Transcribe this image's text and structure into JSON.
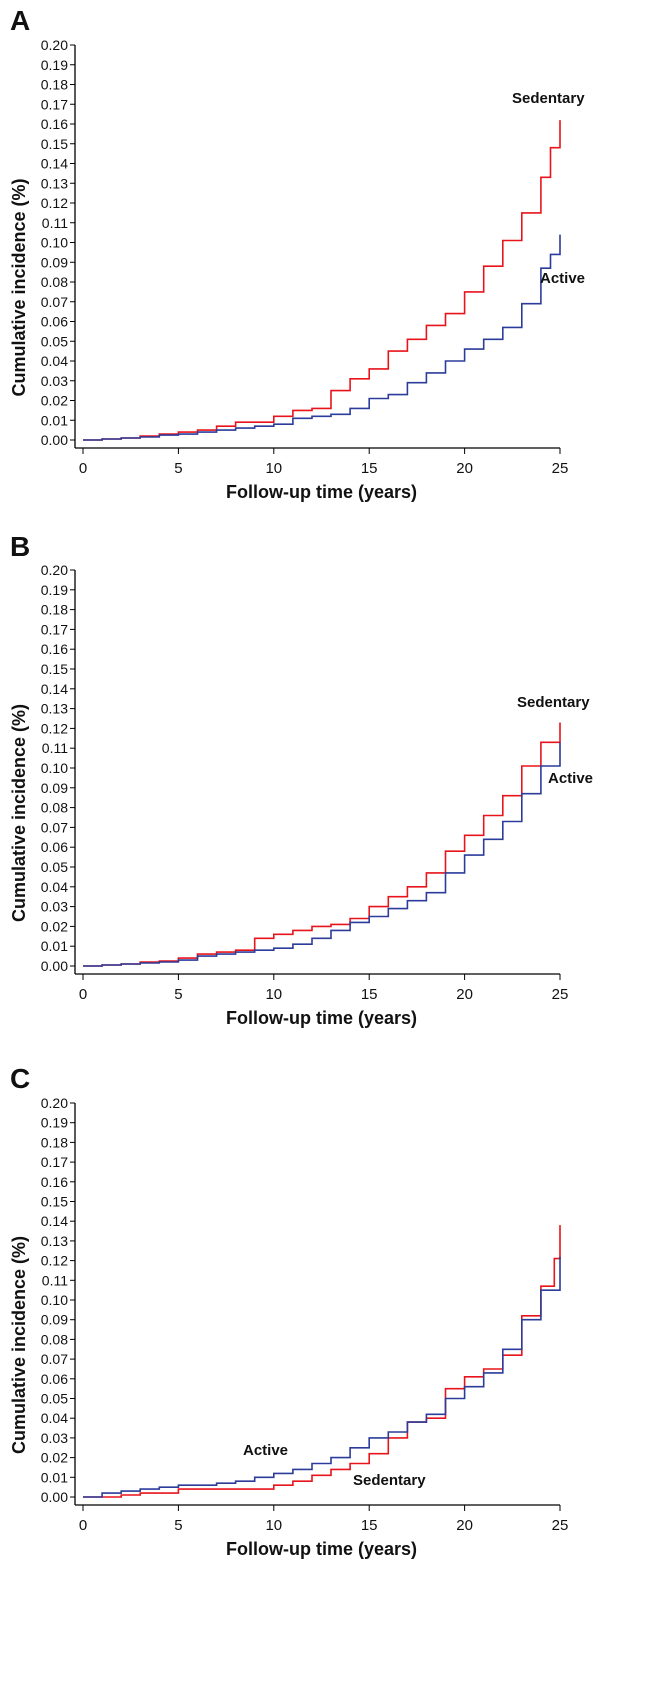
{
  "chart_data": [
    {
      "panel": "A",
      "type": "line",
      "xlabel": "Follow-up time (years)",
      "ylabel": "Cumulative incidence (%)",
      "xlim": [
        0,
        25
      ],
      "ylim": [
        0,
        0.2
      ],
      "xticks": [
        "0",
        "5",
        "10",
        "15",
        "20",
        "25"
      ],
      "yticks": [
        "0.00",
        "0.01",
        "0.02",
        "0.03",
        "0.04",
        "0.05",
        "0.06",
        "0.07",
        "0.08",
        "0.09",
        "0.10",
        "0.11",
        "0.12",
        "0.13",
        "0.14",
        "0.15",
        "0.16",
        "0.17",
        "0.18",
        "0.19",
        "0.20"
      ],
      "grid": false,
      "line_style": "step",
      "series": [
        {
          "name": "Sedentary",
          "color": "#e8141c",
          "x": [
            0,
            1,
            2,
            3,
            4,
            5,
            6,
            7,
            8,
            9,
            10,
            11,
            12,
            12.5,
            13,
            14,
            15,
            16,
            17,
            18,
            19,
            20,
            21,
            22,
            23,
            24,
            24.5,
            25
          ],
          "y": [
            0,
            0.0005,
            0.001,
            0.002,
            0.003,
            0.004,
            0.005,
            0.007,
            0.009,
            0.009,
            0.012,
            0.015,
            0.016,
            0.016,
            0.025,
            0.031,
            0.036,
            0.045,
            0.051,
            0.058,
            0.064,
            0.075,
            0.088,
            0.101,
            0.115,
            0.133,
            0.148,
            0.162
          ]
        },
        {
          "name": "Active",
          "color": "#2b3c9b",
          "x": [
            0,
            1,
            2,
            3,
            4,
            5,
            6,
            7,
            8,
            9,
            10,
            11,
            12,
            13,
            14,
            15,
            16,
            17,
            18,
            19,
            20,
            21,
            22,
            23,
            24,
            24.5,
            25
          ],
          "y": [
            0,
            0.0005,
            0.001,
            0.0015,
            0.0025,
            0.003,
            0.004,
            0.005,
            0.006,
            0.007,
            0.008,
            0.011,
            0.012,
            0.013,
            0.016,
            0.021,
            0.023,
            0.029,
            0.034,
            0.04,
            0.046,
            0.051,
            0.057,
            0.069,
            0.087,
            0.094,
            0.104
          ]
        }
      ]
    },
    {
      "panel": "B",
      "type": "line",
      "xlabel": "Follow-up time (years)",
      "ylabel": "Cumulative incidence (%)",
      "xlim": [
        0,
        25
      ],
      "ylim": [
        0,
        0.2
      ],
      "xticks": [
        "0",
        "5",
        "10",
        "15",
        "20",
        "25"
      ],
      "yticks": [
        "0.00",
        "0.01",
        "0.02",
        "0.03",
        "0.04",
        "0.05",
        "0.06",
        "0.07",
        "0.08",
        "0.09",
        "0.10",
        "0.11",
        "0.12",
        "0.13",
        "0.14",
        "0.15",
        "0.16",
        "0.17",
        "0.18",
        "0.19",
        "0.20"
      ],
      "grid": false,
      "line_style": "step",
      "series": [
        {
          "name": "Sedentary",
          "color": "#e8141c",
          "x": [
            0,
            1,
            2,
            3,
            4,
            5,
            6,
            7,
            8,
            9,
            10,
            11,
            12,
            13,
            14,
            15,
            16,
            17,
            18,
            19,
            20,
            21,
            22,
            23,
            24,
            25
          ],
          "y": [
            0,
            0.0005,
            0.001,
            0.002,
            0.0025,
            0.004,
            0.006,
            0.007,
            0.008,
            0.014,
            0.016,
            0.018,
            0.02,
            0.021,
            0.024,
            0.03,
            0.035,
            0.04,
            0.047,
            0.058,
            0.066,
            0.076,
            0.086,
            0.101,
            0.113,
            0.123
          ]
        },
        {
          "name": "Active",
          "color": "#2b3c9b",
          "x": [
            0,
            1,
            2,
            3,
            4,
            5,
            6,
            7,
            8,
            9,
            10,
            11,
            12,
            13,
            14,
            15,
            16,
            17,
            18,
            19,
            20,
            21,
            22,
            23,
            24,
            25
          ],
          "y": [
            0,
            0.0005,
            0.001,
            0.0015,
            0.002,
            0.003,
            0.005,
            0.006,
            0.007,
            0.008,
            0.009,
            0.011,
            0.014,
            0.018,
            0.022,
            0.025,
            0.029,
            0.033,
            0.037,
            0.047,
            0.056,
            0.064,
            0.073,
            0.087,
            0.101,
            0.113
          ]
        }
      ]
    },
    {
      "panel": "C",
      "type": "line",
      "xlabel": "Follow-up time (years)",
      "ylabel": "Cumulative incidence (%)",
      "xlim": [
        0,
        25
      ],
      "ylim": [
        0,
        0.2
      ],
      "xticks": [
        "0",
        "5",
        "10",
        "15",
        "20",
        "25"
      ],
      "yticks": [
        "0.00",
        "0.01",
        "0.02",
        "0.03",
        "0.04",
        "0.05",
        "0.06",
        "0.07",
        "0.08",
        "0.09",
        "0.10",
        "0.11",
        "0.12",
        "0.13",
        "0.14",
        "0.15",
        "0.16",
        "0.17",
        "0.18",
        "0.19",
        "0.20"
      ],
      "grid": false,
      "line_style": "step",
      "series": [
        {
          "name": "Sedentary",
          "color": "#e8141c",
          "x": [
            0,
            1,
            2,
            3,
            4,
            5,
            6,
            7,
            8,
            9,
            10,
            11,
            12,
            13,
            14,
            15,
            16,
            17,
            18,
            19,
            20,
            21,
            22,
            23,
            24,
            24.7,
            25
          ],
          "y": [
            0,
            0,
            0.001,
            0.002,
            0.002,
            0.004,
            0.004,
            0.004,
            0.004,
            0.004,
            0.006,
            0.008,
            0.011,
            0.014,
            0.017,
            0.022,
            0.03,
            0.038,
            0.04,
            0.055,
            0.061,
            0.065,
            0.072,
            0.092,
            0.107,
            0.121,
            0.138
          ]
        },
        {
          "name": "Active",
          "color": "#2b3c9b",
          "x": [
            0,
            1,
            2,
            3,
            4,
            5,
            6,
            7,
            8,
            9,
            10,
            11,
            12,
            13,
            14,
            15,
            16,
            17,
            18,
            19,
            20,
            21,
            22,
            23,
            24,
            25
          ],
          "y": [
            0,
            0.002,
            0.003,
            0.004,
            0.005,
            0.006,
            0.006,
            0.007,
            0.008,
            0.01,
            0.012,
            0.014,
            0.017,
            0.02,
            0.025,
            0.03,
            0.033,
            0.038,
            0.042,
            0.05,
            0.056,
            0.063,
            0.075,
            0.09,
            0.105,
            0.122
          ]
        }
      ]
    }
  ]
}
